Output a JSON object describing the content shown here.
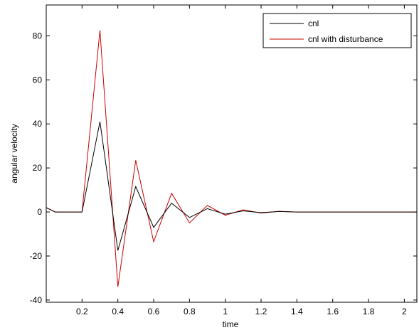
{
  "chart_data": {
    "type": "line",
    "xlabel": "time",
    "ylabel": "angular velocity",
    "xlim": [
      0.0,
      2.07
    ],
    "ylim": [
      -41,
      94
    ],
    "xticks": [
      0.2,
      0.4,
      0.6,
      0.8,
      1.0,
      1.2,
      1.4,
      1.6,
      1.8,
      2.0
    ],
    "xtick_labels": [
      "0.2",
      "0.4",
      "0.6",
      "0.8",
      "1",
      "1.2",
      "1.4",
      "1.6",
      "1.8",
      "2"
    ],
    "yticks": [
      -40,
      -20,
      0,
      20,
      40,
      60,
      80
    ],
    "ytick_labels": [
      "-40",
      "-20",
      "0",
      "20",
      "40",
      "60",
      "80"
    ],
    "grid": false,
    "legend_position": "top-right",
    "series": [
      {
        "name": "cnl",
        "color": "#000000",
        "x": [
          0.0,
          0.05,
          0.1,
          0.2,
          0.3,
          0.4,
          0.5,
          0.6,
          0.7,
          0.8,
          0.9,
          1.0,
          1.1,
          1.2,
          1.3,
          1.4,
          1.5,
          1.6,
          2.07
        ],
        "y": [
          2,
          0,
          0,
          0,
          41,
          -17.5,
          11.5,
          -7,
          4,
          -2.5,
          1.5,
          -1,
          0.5,
          -0.3,
          0.2,
          0,
          0,
          0,
          0
        ]
      },
      {
        "name": "cnl with disturbance",
        "color": "#cc0000",
        "x": [
          0.0,
          0.05,
          0.1,
          0.2,
          0.3,
          0.4,
          0.5,
          0.6,
          0.7,
          0.8,
          0.9,
          1.0,
          1.1,
          1.2,
          1.3,
          1.4,
          1.5,
          1.6,
          2.07
        ],
        "y": [
          2,
          0,
          0,
          0,
          82.5,
          -34,
          23.5,
          -13.5,
          8.5,
          -5,
          3,
          -1.5,
          1,
          -0.5,
          0.3,
          0,
          0,
          0,
          0
        ]
      }
    ]
  }
}
